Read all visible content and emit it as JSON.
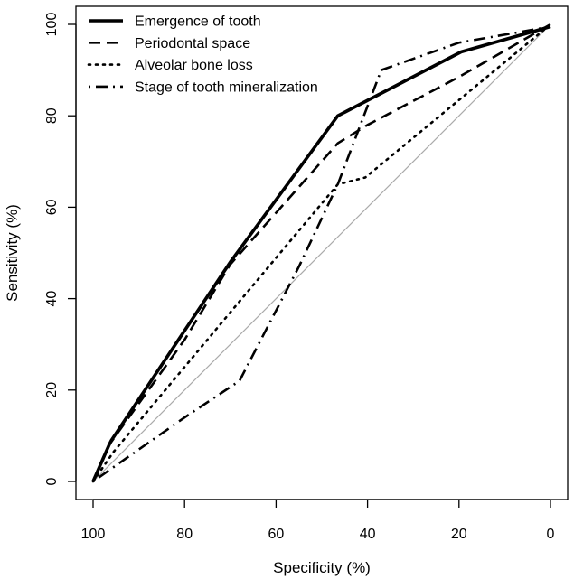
{
  "chart_data": {
    "type": "line",
    "title": "",
    "xlabel": "Specificity (%)",
    "ylabel": "Sensitivity (%)",
    "xlim": [
      100,
      0
    ],
    "ylim": [
      0,
      100
    ],
    "x_reversed": true,
    "x_ticks": [
      "100",
      "80",
      "60",
      "40",
      "20",
      "0"
    ],
    "y_ticks": [
      "0",
      "20",
      "40",
      "60",
      "80",
      "100"
    ],
    "grid": false,
    "legend_position": "top-left",
    "reference_line": {
      "name": "chance",
      "x": [
        100,
        0
      ],
      "y": [
        0,
        100
      ],
      "color": "#aaaaaa"
    },
    "series": [
      {
        "name": "Emergence of tooth",
        "style": "solid",
        "x": [
          100,
          96.5,
          96,
          70,
          46.5,
          19.5,
          0
        ],
        "y": [
          0,
          8,
          9,
          48,
          80,
          94,
          99.5
        ]
      },
      {
        "name": "Periodontal space",
        "style": "dashed",
        "x": [
          100,
          96.5,
          80,
          70,
          46.5,
          40,
          20,
          0
        ],
        "y": [
          0,
          8,
          31,
          47.5,
          74,
          78,
          88.5,
          100
        ]
      },
      {
        "name": "Alveolar bone loss",
        "style": "dotted",
        "x": [
          100,
          95.5,
          70,
          46.5,
          40.5,
          0
        ],
        "y": [
          0,
          6.5,
          37,
          65,
          66.5,
          100
        ]
      },
      {
        "name": "Stage of tooth mineralization",
        "style": "dotdash",
        "x": [
          100,
          80,
          68,
          55,
          46.5,
          37,
          20,
          0
        ],
        "y": [
          0,
          14,
          22,
          47,
          65,
          90,
          96,
          99.5
        ]
      }
    ]
  }
}
